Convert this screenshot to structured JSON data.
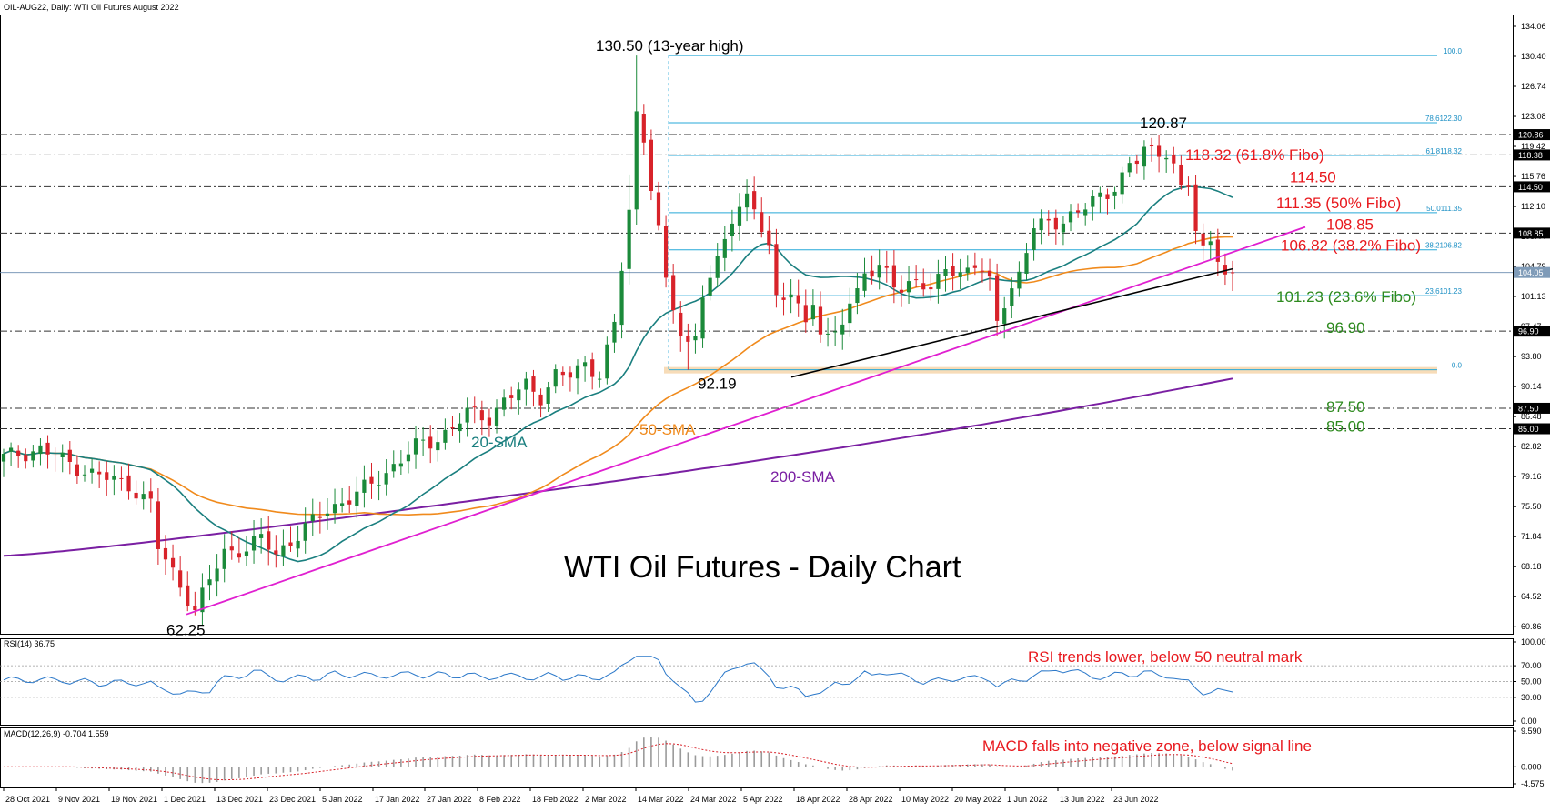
{
  "chart_data": {
    "type": "candlestick",
    "symbol_header": "OIL-AUG22, Daily:  WTI Oil Futures August 2022",
    "title": "WTI Oil Futures - Daily Chart",
    "colors": {
      "up": "#1b8a3a",
      "down": "#d8232a",
      "sma20": "#1a7f7f",
      "sma50": "#f08a1c",
      "sma200": "#7a1fa2",
      "trend_up": "#e020d0",
      "trend_low": "#000000",
      "fibo": "#27a9d8",
      "panel_line": "#2b78c9",
      "macd_signal": "#d8232a",
      "hist": "#9a9a9a",
      "red_text": "#e8191e",
      "green_text": "#2d8a1e",
      "black_text": "#000000"
    },
    "price_axis": {
      "min": 60,
      "max": 135.5,
      "ticks": [
        "134.06",
        "130.40",
        "126.74",
        "123.08",
        "119.42",
        "115.76",
        "112.10",
        "108.44",
        "104.79",
        "101.13",
        "97.47",
        "93.80",
        "90.14",
        "86.48",
        "82.82",
        "79.16",
        "75.50",
        "71.84",
        "68.18",
        "64.52",
        "60.86"
      ]
    },
    "price_tags": [
      {
        "label": "120.86",
        "value": 120.86
      },
      {
        "label": "118.38",
        "value": 118.38
      },
      {
        "label": "114.50",
        "value": 114.5
      },
      {
        "label": "108.85",
        "value": 108.85
      },
      {
        "label": "104.05",
        "value": 104.05,
        "current": true
      },
      {
        "label": "96.90",
        "value": 96.9
      },
      {
        "label": "87.50",
        "value": 87.5
      },
      {
        "label": "85.00",
        "value": 85.0
      }
    ],
    "date_labels": [
      "28 Oct 2021",
      "9 Nov 2021",
      "19 Nov 2021",
      "1 Dec 2021",
      "13 Dec 2021",
      "23 Dec 2021",
      "5 Jan 2022",
      "17 Jan 2022",
      "27 Jan 2022",
      "8 Feb 2022",
      "18 Feb 2022",
      "2 Mar 2022",
      "14 Mar 2022",
      "24 Mar 2022",
      "5 Apr 2022",
      "18 Apr 2022",
      "28 Apr 2022",
      "10 May 2022",
      "20 May 2022",
      "1 Jun 2022",
      "13 Jun 2022",
      "23 Jun 2022"
    ],
    "horizontal_levels": [
      120.86,
      118.38,
      114.5,
      108.85,
      96.9,
      87.5,
      85.0
    ],
    "fibo_levels": [
      {
        "label": "100.0",
        "value": 130.5
      },
      {
        "label": "78.6122.30",
        "value": 122.3
      },
      {
        "label": "61.8118.32",
        "value": 118.32
      },
      {
        "label": "50.0111.35",
        "value": 111.35
      },
      {
        "label": "38.2106.82",
        "value": 106.82
      },
      {
        "label": "23.6101.23",
        "value": 101.23
      },
      {
        "label": "0.0",
        "value": 92.19
      }
    ],
    "annotations": [
      {
        "text": "130.50 (13-year high)",
        "color": "black",
        "value": 130.5,
        "anchor": "high"
      },
      {
        "text": "120.87",
        "color": "black",
        "value": 120.87
      },
      {
        "text": "118.32 (61.8% Fibo)",
        "color": "red",
        "value": 118.32
      },
      {
        "text": "114.50",
        "color": "red",
        "value": 114.5
      },
      {
        "text": "111.35 (50% Fibo)",
        "color": "red",
        "value": 111.35
      },
      {
        "text": "108.85",
        "color": "red",
        "value": 108.85
      },
      {
        "text": "106.82 (38.2% Fibo)",
        "color": "red",
        "value": 106.82
      },
      {
        "text": "101.23 (23.6% Fibo)",
        "color": "green",
        "value": 101.23
      },
      {
        "text": "96.90",
        "color": "green",
        "value": 96.9
      },
      {
        "text": "92.19",
        "color": "black",
        "value": 92.19
      },
      {
        "text": "87.50",
        "color": "green",
        "value": 87.5
      },
      {
        "text": "85.00",
        "color": "green",
        "value": 85.0
      },
      {
        "text": "62.25",
        "color": "black",
        "value": 62.25
      }
    ],
    "sma_labels": [
      {
        "text": "20-SMA",
        "color": "sma20"
      },
      {
        "text": "50-SMA",
        "color": "sma50"
      },
      {
        "text": "200-SMA",
        "color": "sma200"
      }
    ],
    "rsi": {
      "header": "RSI(14) 36.75",
      "ticks": [
        "100.00",
        "70.00",
        "50.00",
        "30.00",
        "0.00"
      ],
      "levels": [
        70,
        50,
        30
      ],
      "note": "RSI trends lower, below 50 neutral mark"
    },
    "macd": {
      "header": "MACD(12,26,9) -0.704 1.559",
      "ticks": [
        "9.590",
        "0.000",
        "-4.575"
      ],
      "note": "MACD falls into negative zone, below signal line"
    }
  }
}
